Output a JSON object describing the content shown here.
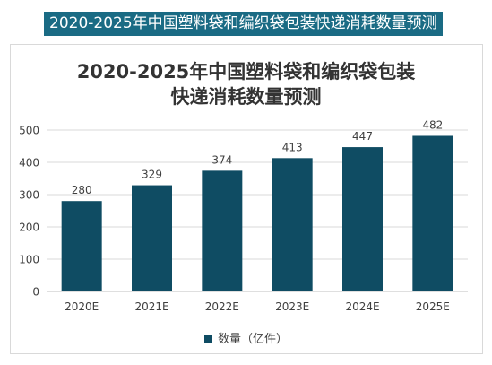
{
  "banner": {
    "text": "2020-2025年中国塑料袋和编织袋包装快递消耗数量预测"
  },
  "chart_data": {
    "type": "bar",
    "title_lines": [
      "2020-2025年中国塑料袋和编织袋包装",
      "快递消耗数量预测"
    ],
    "categories": [
      "2020E",
      "2021E",
      "2022E",
      "2023E",
      "2024E",
      "2025E"
    ],
    "series": [
      {
        "name": "数量（亿件）",
        "values": [
          280,
          329,
          374,
          413,
          447,
          482
        ],
        "color": "#0f4c63"
      }
    ],
    "data_labels": [
      "280",
      "329",
      "374",
      "413",
      "447",
      "482"
    ],
    "y_ticks": [
      0,
      100,
      200,
      300,
      400,
      500
    ],
    "y_tick_labels": [
      "0",
      "100",
      "200",
      "300",
      "400",
      "500"
    ],
    "ylim": [
      0,
      500
    ],
    "grid": true,
    "legend_position": "bottom",
    "xlabel": "",
    "ylabel": ""
  }
}
